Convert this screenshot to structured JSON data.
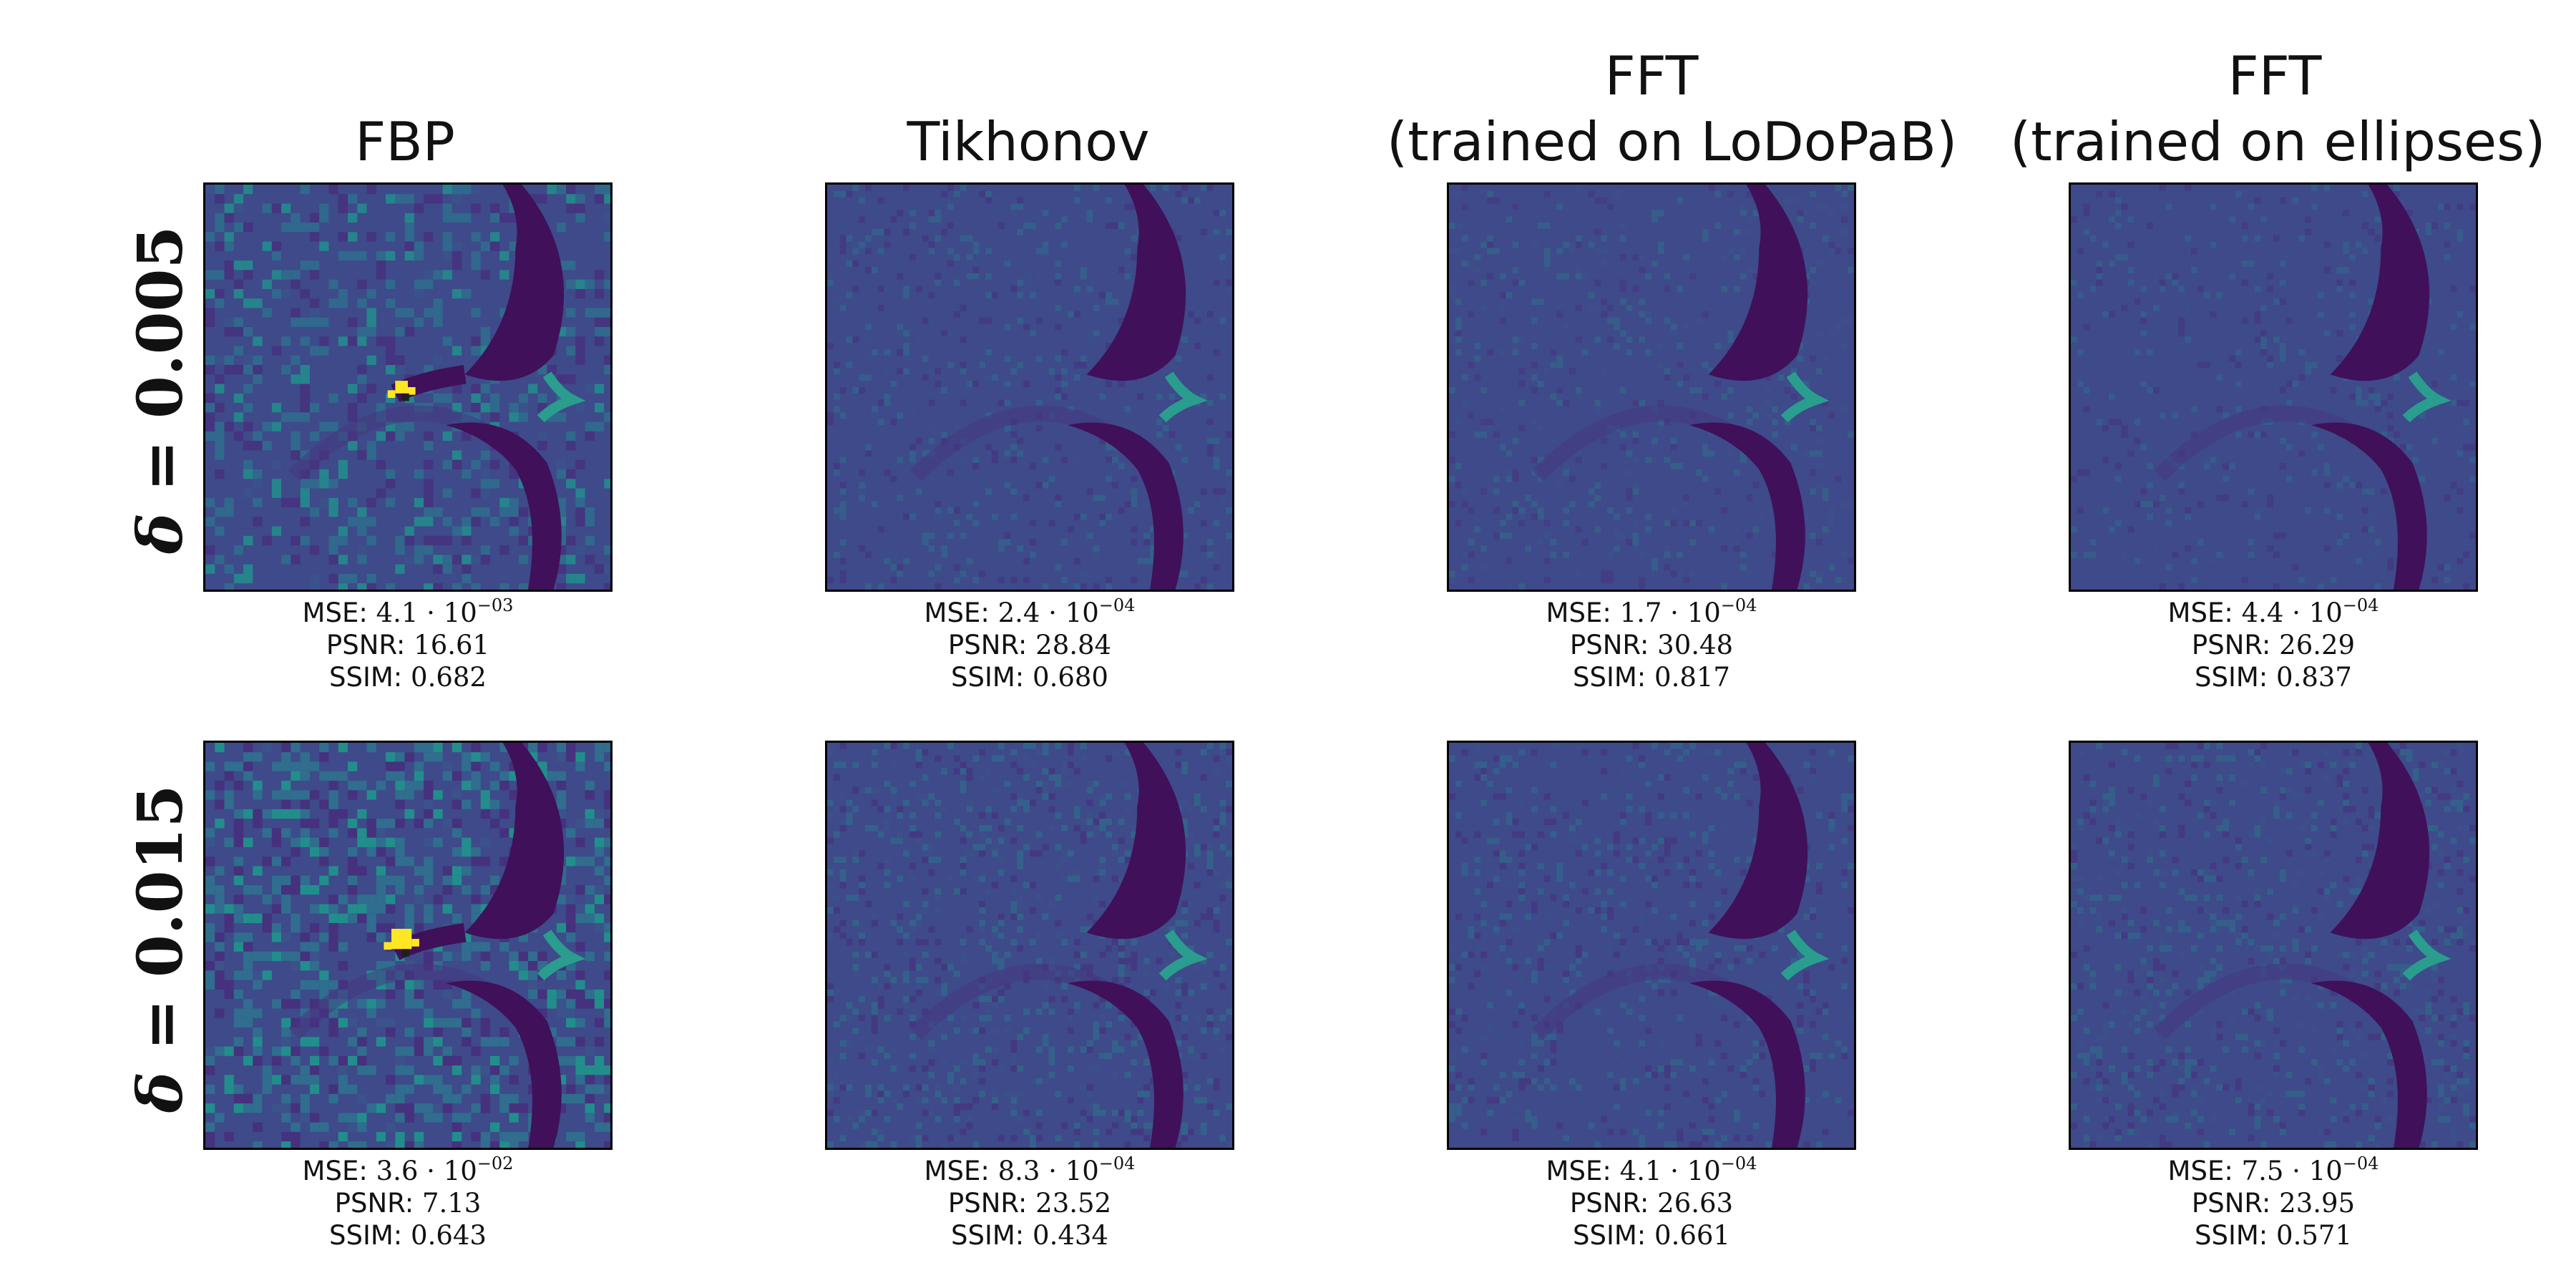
{
  "columns": [
    {
      "title_lines": [
        "FBP"
      ]
    },
    {
      "title_lines": [
        "Tikhonov"
      ]
    },
    {
      "title_lines": [
        "FFT",
        "(trained on LoDoPaB)"
      ]
    },
    {
      "title_lines": [
        "FFT",
        "(trained on ellipses)"
      ]
    }
  ],
  "rows": [
    {
      "label_symbol": "δ",
      "label_rest": " = 0.005"
    },
    {
      "label_symbol": "δ",
      "label_rest": " = 0.015"
    }
  ],
  "metric_labels": {
    "mse": "MSE: ",
    "psnr": "PSNR: ",
    "ssim": "SSIM: "
  },
  "results": [
    [
      {
        "mse_mantissa": "4.1 · 10",
        "mse_exponent": "−03",
        "psnr": "16.61",
        "ssim": "0.682",
        "noise": 0.72
      },
      {
        "mse_mantissa": "2.4 · 10",
        "mse_exponent": "−04",
        "psnr": "28.84",
        "ssim": "0.680",
        "noise": 0.18
      },
      {
        "mse_mantissa": "1.7 · 10",
        "mse_exponent": "−04",
        "psnr": "30.48",
        "ssim": "0.817",
        "noise": 0.1
      },
      {
        "mse_mantissa": "4.4 · 10",
        "mse_exponent": "−04",
        "psnr": "26.29",
        "ssim": "0.837",
        "noise": 0.08
      }
    ],
    [
      {
        "mse_mantissa": "3.6 · 10",
        "mse_exponent": "−02",
        "psnr": "7.13",
        "ssim": "0.643",
        "noise": 1.0
      },
      {
        "mse_mantissa": "8.3 · 10",
        "mse_exponent": "−04",
        "psnr": "23.52",
        "ssim": "0.434",
        "noise": 0.34
      },
      {
        "mse_mantissa": "4.1 · 10",
        "mse_exponent": "−04",
        "psnr": "26.63",
        "ssim": "0.661",
        "noise": 0.22
      },
      {
        "mse_mantissa": "7.5 · 10",
        "mse_exponent": "−04",
        "psnr": "23.95",
        "ssim": "0.571",
        "noise": 0.26
      }
    ]
  ],
  "colors": {
    "background": "#3e4a89",
    "dark_structure": "#40105a",
    "teal_highlight": "#2a9d8e",
    "bright_artifact": "#fde725"
  }
}
